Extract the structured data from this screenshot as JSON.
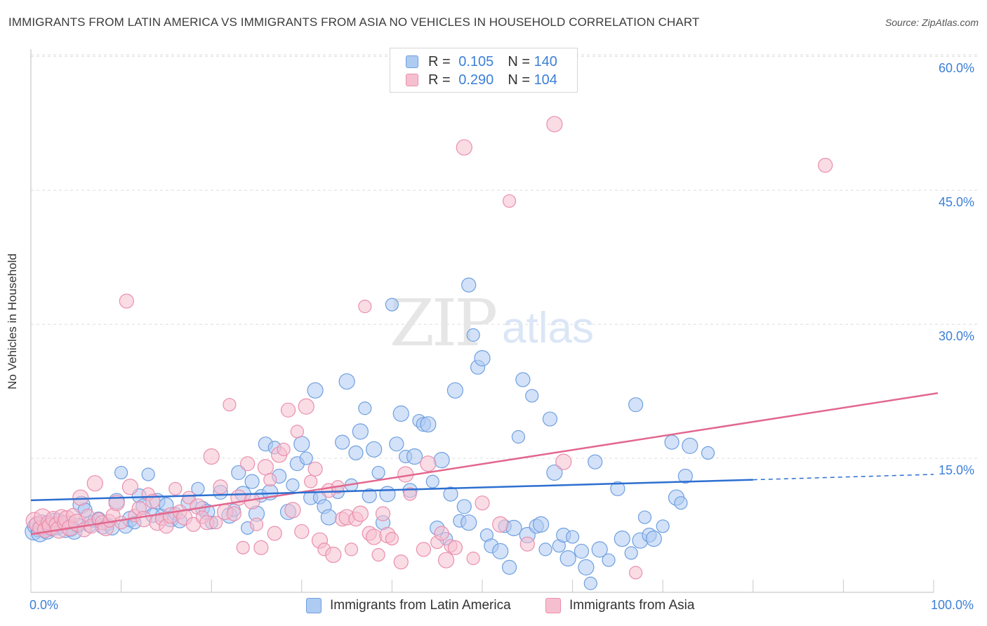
{
  "header": {
    "title": "IMMIGRANTS FROM LATIN AMERICA VS IMMIGRANTS FROM ASIA NO VEHICLES IN HOUSEHOLD CORRELATION CHART",
    "source": "Source: ZipAtlas.com"
  },
  "watermark": {
    "zip": "ZIP",
    "atlas": "atlas"
  },
  "legend_top": {
    "rows": [
      {
        "r_label": "R =",
        "r_value": "0.105",
        "n_label": "N =",
        "n_value": "140"
      },
      {
        "r_label": "R =",
        "r_value": "0.290",
        "n_label": "N =",
        "n_value": "104"
      }
    ]
  },
  "colors": {
    "blue_fill": "#aecbf2",
    "blue_stroke": "#6f9fe0",
    "blue_line": "#2d6fd0",
    "pink_fill": "#f6bfd0",
    "pink_stroke": "#e98fae",
    "pink_line": "#e2678f",
    "tick_text": "#3d7fd6",
    "grid": "#dcdcdc"
  },
  "chart_data": {
    "type": "scatter",
    "title": "IMMIGRANTS FROM LATIN AMERICA VS IMMIGRANTS FROM ASIA NO VEHICLES IN HOUSEHOLD CORRELATION CHART",
    "xlabel": "",
    "ylabel": "No Vehicles in Household",
    "xlim": [
      0,
      100
    ],
    "ylim": [
      0,
      63
    ],
    "x_tick_labels": [
      "0.0%",
      "100.0%"
    ],
    "y_ticks": [
      15,
      30,
      45,
      60
    ],
    "y_tick_labels": [
      "15.0%",
      "30.0%",
      "45.0%",
      "60.0%"
    ],
    "grid": "horizontal dashed",
    "legend_placement": "bottom-center",
    "series": [
      {
        "name": "Immigrants from Latin America",
        "color": "#6f9fe0",
        "r": 0.105,
        "n": 140,
        "trend": {
          "x": [
            0,
            80
          ],
          "y": [
            10.3,
            12.6
          ],
          "dashed_to": [
            100,
            13.2
          ]
        },
        "points": [
          [
            0.3,
            6.8
          ],
          [
            0.5,
            7.4
          ],
          [
            0.8,
            7.0
          ],
          [
            1.0,
            6.6
          ],
          [
            1.2,
            7.8
          ],
          [
            1.5,
            7.2
          ],
          [
            1.8,
            6.9
          ],
          [
            2.0,
            7.5
          ],
          [
            2.3,
            7.1
          ],
          [
            2.6,
            7.9
          ],
          [
            2.9,
            7.3
          ],
          [
            3.2,
            8.0
          ],
          [
            3.5,
            7.6
          ],
          [
            3.8,
            7.0
          ],
          [
            4.1,
            7.8
          ],
          [
            4.4,
            7.2
          ],
          [
            4.8,
            6.8
          ],
          [
            5.2,
            7.5
          ],
          [
            5.6,
            9.8
          ],
          [
            6.0,
            9.2
          ],
          [
            6.5,
            7.6
          ],
          [
            7.0,
            8.0
          ],
          [
            7.5,
            8.2
          ],
          [
            8.0,
            7.4
          ],
          [
            8.5,
            7.6
          ],
          [
            9.0,
            7.2
          ],
          [
            9.5,
            10.2
          ],
          [
            10.0,
            13.4
          ],
          [
            10.5,
            7.4
          ],
          [
            11.0,
            8.2
          ],
          [
            11.5,
            7.8
          ],
          [
            12.0,
            10.8
          ],
          [
            12.5,
            9.6
          ],
          [
            13.0,
            13.2
          ],
          [
            13.5,
            8.6
          ],
          [
            14.0,
            10.2
          ],
          [
            14.5,
            8.6
          ],
          [
            15.0,
            9.8
          ],
          [
            15.5,
            8.2
          ],
          [
            16.0,
            8.8
          ],
          [
            16.5,
            8.0
          ],
          [
            17.5,
            10.0
          ],
          [
            18.5,
            11.6
          ],
          [
            19.0,
            9.4
          ],
          [
            19.5,
            9.0
          ],
          [
            20.0,
            7.8
          ],
          [
            21.0,
            11.2
          ],
          [
            22.0,
            8.6
          ],
          [
            22.5,
            9.2
          ],
          [
            23.0,
            13.4
          ],
          [
            23.5,
            11.0
          ],
          [
            24.0,
            7.2
          ],
          [
            24.5,
            12.4
          ],
          [
            25.0,
            8.8
          ],
          [
            25.5,
            10.8
          ],
          [
            26.0,
            16.6
          ],
          [
            26.5,
            11.2
          ],
          [
            27.0,
            16.2
          ],
          [
            27.5,
            13.0
          ],
          [
            28.5,
            9.0
          ],
          [
            29.0,
            12.0
          ],
          [
            29.5,
            14.4
          ],
          [
            30.0,
            16.6
          ],
          [
            30.5,
            15.0
          ],
          [
            31.0,
            10.6
          ],
          [
            31.5,
            22.6
          ],
          [
            32.0,
            10.6
          ],
          [
            32.5,
            9.6
          ],
          [
            33.0,
            8.4
          ],
          [
            34.0,
            11.2
          ],
          [
            34.5,
            16.8
          ],
          [
            35.0,
            23.6
          ],
          [
            35.5,
            12.0
          ],
          [
            36.0,
            15.6
          ],
          [
            36.5,
            18.0
          ],
          [
            37.0,
            20.6
          ],
          [
            37.5,
            10.8
          ],
          [
            38.0,
            16.0
          ],
          [
            38.5,
            13.4
          ],
          [
            39.0,
            7.8
          ],
          [
            39.5,
            11.0
          ],
          [
            40.0,
            32.2
          ],
          [
            40.5,
            16.6
          ],
          [
            41.0,
            20.0
          ],
          [
            41.5,
            15.2
          ],
          [
            42.0,
            11.4
          ],
          [
            42.5,
            15.2
          ],
          [
            43.0,
            19.2
          ],
          [
            43.5,
            18.8
          ],
          [
            44.0,
            18.8
          ],
          [
            44.5,
            12.4
          ],
          [
            45.0,
            7.2
          ],
          [
            45.5,
            14.8
          ],
          [
            46.0,
            6.0
          ],
          [
            46.5,
            11.0
          ],
          [
            47.0,
            22.6
          ],
          [
            47.5,
            8.0
          ],
          [
            48.0,
            9.6
          ],
          [
            48.5,
            7.8
          ],
          [
            49.0,
            28.8
          ],
          [
            49.5,
            25.2
          ],
          [
            50.0,
            26.2
          ],
          [
            50.5,
            6.4
          ],
          [
            51.0,
            5.2
          ],
          [
            52.0,
            4.6
          ],
          [
            52.5,
            7.4
          ],
          [
            53.0,
            2.8
          ],
          [
            53.5,
            7.2
          ],
          [
            54.0,
            17.4
          ],
          [
            54.5,
            23.8
          ],
          [
            55.0,
            6.4
          ],
          [
            55.5,
            22.0
          ],
          [
            56.0,
            7.4
          ],
          [
            56.5,
            7.6
          ],
          [
            57.0,
            4.8
          ],
          [
            57.5,
            19.4
          ],
          [
            58.0,
            13.4
          ],
          [
            58.5,
            5.2
          ],
          [
            59.0,
            6.4
          ],
          [
            59.5,
            3.8
          ],
          [
            60.0,
            6.2
          ],
          [
            61.0,
            4.6
          ],
          [
            61.5,
            2.8
          ],
          [
            62.0,
            1.0
          ],
          [
            62.5,
            14.6
          ],
          [
            63.0,
            4.8
          ],
          [
            64.0,
            3.6
          ],
          [
            65.0,
            11.6
          ],
          [
            65.5,
            6.0
          ],
          [
            66.5,
            4.4
          ],
          [
            67.0,
            21.0
          ],
          [
            67.5,
            5.8
          ],
          [
            68.0,
            8.4
          ],
          [
            68.5,
            6.4
          ],
          [
            69.0,
            6.0
          ],
          [
            70.0,
            7.4
          ],
          [
            71.0,
            16.8
          ],
          [
            71.5,
            10.6
          ],
          [
            72.0,
            10.0
          ],
          [
            72.5,
            13.0
          ],
          [
            73.0,
            16.4
          ],
          [
            75.0,
            15.6
          ],
          [
            48.5,
            34.4
          ]
        ]
      },
      {
        "name": "Immigrants from Asia",
        "color": "#e98fae",
        "r": 0.29,
        "n": 104,
        "trend": {
          "x": [
            0,
            100
          ],
          "y": [
            6.5,
            22.3
          ]
        },
        "points": [
          [
            0.4,
            8.0
          ],
          [
            0.7,
            7.6
          ],
          [
            1.0,
            7.2
          ],
          [
            1.3,
            8.4
          ],
          [
            1.6,
            7.0
          ],
          [
            1.9,
            7.8
          ],
          [
            2.2,
            7.4
          ],
          [
            2.5,
            8.2
          ],
          [
            2.8,
            7.6
          ],
          [
            3.1,
            7.0
          ],
          [
            3.4,
            8.4
          ],
          [
            3.7,
            7.8
          ],
          [
            4.0,
            8.2
          ],
          [
            4.3,
            7.2
          ],
          [
            4.7,
            8.6
          ],
          [
            5.1,
            7.8
          ],
          [
            5.5,
            10.6
          ],
          [
            5.9,
            7.0
          ],
          [
            6.3,
            8.6
          ],
          [
            6.7,
            7.4
          ],
          [
            7.1,
            12.2
          ],
          [
            7.5,
            8.2
          ],
          [
            7.9,
            7.8
          ],
          [
            8.3,
            7.2
          ],
          [
            8.7,
            8.0
          ],
          [
            9.1,
            8.6
          ],
          [
            9.5,
            10.0
          ],
          [
            10.0,
            7.8
          ],
          [
            10.6,
            32.6
          ],
          [
            11.0,
            11.8
          ],
          [
            11.5,
            8.6
          ],
          [
            12.0,
            9.4
          ],
          [
            12.5,
            8.2
          ],
          [
            13.0,
            11.0
          ],
          [
            13.5,
            10.2
          ],
          [
            14.0,
            7.8
          ],
          [
            14.5,
            8.2
          ],
          [
            15.0,
            7.4
          ],
          [
            15.5,
            8.6
          ],
          [
            16.0,
            11.6
          ],
          [
            16.5,
            9.0
          ],
          [
            17.0,
            8.4
          ],
          [
            17.5,
            10.6
          ],
          [
            18.0,
            7.6
          ],
          [
            18.5,
            9.6
          ],
          [
            19.0,
            8.4
          ],
          [
            19.5,
            7.8
          ],
          [
            20.0,
            15.2
          ],
          [
            20.5,
            7.8
          ],
          [
            21.0,
            11.8
          ],
          [
            21.5,
            9.0
          ],
          [
            22.0,
            21.0
          ],
          [
            22.5,
            8.8
          ],
          [
            23.0,
            10.6
          ],
          [
            23.5,
            5.0
          ],
          [
            24.0,
            14.4
          ],
          [
            24.5,
            10.2
          ],
          [
            25.0,
            7.6
          ],
          [
            25.5,
            5.0
          ],
          [
            26.0,
            14.0
          ],
          [
            26.5,
            12.6
          ],
          [
            27.0,
            6.6
          ],
          [
            27.5,
            15.4
          ],
          [
            28.0,
            16.0
          ],
          [
            28.5,
            20.4
          ],
          [
            29.0,
            9.2
          ],
          [
            29.5,
            18.0
          ],
          [
            30.0,
            6.8
          ],
          [
            30.5,
            20.8
          ],
          [
            31.0,
            12.4
          ],
          [
            31.5,
            13.8
          ],
          [
            32.0,
            5.8
          ],
          [
            32.5,
            4.8
          ],
          [
            33.0,
            11.4
          ],
          [
            33.5,
            4.2
          ],
          [
            34.0,
            11.8
          ],
          [
            34.5,
            8.2
          ],
          [
            35.0,
            8.4
          ],
          [
            35.5,
            4.8
          ],
          [
            36.0,
            8.2
          ],
          [
            36.5,
            8.8
          ],
          [
            37.0,
            32.0
          ],
          [
            37.5,
            6.6
          ],
          [
            38.0,
            6.2
          ],
          [
            38.5,
            4.2
          ],
          [
            39.0,
            8.8
          ],
          [
            39.5,
            6.4
          ],
          [
            40.0,
            6.0
          ],
          [
            41.0,
            3.4
          ],
          [
            41.5,
            13.2
          ],
          [
            42.0,
            11.0
          ],
          [
            43.5,
            4.8
          ],
          [
            44.0,
            14.4
          ],
          [
            45.0,
            5.6
          ],
          [
            45.5,
            6.6
          ],
          [
            46.0,
            3.6
          ],
          [
            46.5,
            5.2
          ],
          [
            47.0,
            5.0
          ],
          [
            48.0,
            49.8
          ],
          [
            49.0,
            3.8
          ],
          [
            50.0,
            10.0
          ],
          [
            52.0,
            7.6
          ],
          [
            53.0,
            43.8
          ],
          [
            55.0,
            5.4
          ],
          [
            58.0,
            52.4
          ],
          [
            67.0,
            2.2
          ],
          [
            88.0,
            47.8
          ],
          [
            59.0,
            14.6
          ]
        ]
      }
    ]
  }
}
